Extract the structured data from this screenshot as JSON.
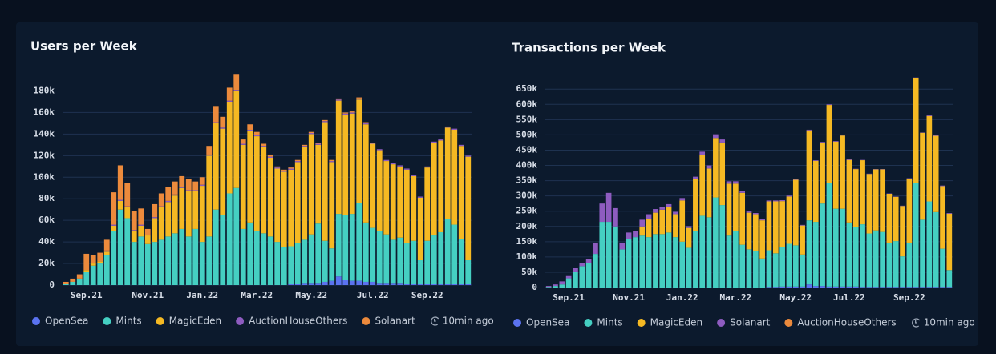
{
  "chart_data": [
    {
      "type": "stacked_bar",
      "title": "Users per Week",
      "note": "10min ago",
      "categories": [
        null,
        null,
        null,
        "Sep.21",
        null,
        null,
        null,
        null,
        null,
        null,
        null,
        null,
        "Nov.21",
        null,
        null,
        null,
        null,
        null,
        null,
        null,
        "Jan.22",
        null,
        null,
        null,
        null,
        null,
        null,
        null,
        "Mar.22",
        null,
        null,
        null,
        null,
        null,
        null,
        null,
        "May.22",
        null,
        null,
        null,
        null,
        null,
        null,
        null,
        null,
        "Jul.22",
        null,
        null,
        null,
        null,
        null,
        null,
        null,
        "Sep.22",
        null,
        null,
        null,
        null,
        null,
        null
      ],
      "ylim": [
        0,
        190
      ],
      "yticks": [
        0,
        {
          "value": 20,
          "label": "20k"
        },
        {
          "value": 40,
          "label": "40k"
        },
        {
          "value": 60,
          "label": "60k"
        },
        {
          "value": 80,
          "label": "80k"
        },
        {
          "value": 100,
          "label": "100k"
        },
        {
          "value": 120,
          "label": "120k"
        },
        {
          "value": 140,
          "label": "140k"
        },
        {
          "value": 160,
          "label": "160k"
        },
        {
          "value": 180,
          "label": "180k"
        }
      ],
      "grid": true,
      "series": [
        {
          "name": "OpenSea",
          "color": "#5b73f0",
          "values": [
            0,
            0,
            0,
            0,
            0,
            0,
            0,
            0,
            0,
            0,
            0,
            0,
            0,
            0,
            0,
            0,
            0,
            0,
            0,
            0,
            0,
            0,
            0,
            0,
            0,
            0,
            0,
            0,
            0,
            0,
            0,
            0,
            0,
            1,
            1,
            2,
            2,
            2,
            3,
            4,
            8,
            5,
            4,
            4,
            3,
            3,
            2,
            2,
            2,
            2,
            1,
            1,
            1,
            1,
            1,
            1,
            1,
            1,
            1,
            1
          ]
        },
        {
          "name": "Mints",
          "color": "#45cfc2",
          "values": [
            1,
            3,
            6,
            12,
            18,
            20,
            28,
            50,
            70,
            62,
            40,
            45,
            38,
            40,
            42,
            45,
            48,
            52,
            45,
            52,
            40,
            45,
            70,
            65,
            85,
            90,
            52,
            58,
            50,
            48,
            45,
            40,
            35,
            35,
            38,
            40,
            45,
            55,
            38,
            30,
            58,
            60,
            62,
            72,
            55,
            50,
            48,
            45,
            40,
            42,
            38,
            40,
            22,
            40,
            45,
            48,
            60,
            55,
            42,
            22
          ]
        },
        {
          "name": "MagicEden",
          "color": "#f5b923",
          "values": [
            0,
            0,
            0,
            2,
            2,
            2,
            3,
            5,
            8,
            10,
            10,
            10,
            8,
            22,
            30,
            32,
            35,
            38,
            42,
            35,
            52,
            75,
            80,
            80,
            85,
            90,
            78,
            85,
            88,
            80,
            73,
            68,
            70,
            71,
            75,
            86,
            93,
            73,
            110,
            80,
            105,
            93,
            93,
            96,
            91,
            78,
            75,
            68,
            70,
            66,
            68,
            60,
            58,
            68,
            86,
            85,
            85,
            88,
            86,
            96
          ]
        },
        {
          "name": "AuctionHouseOthers",
          "color": "#8e5cc0",
          "values": [
            0,
            0,
            0,
            0,
            0,
            0,
            1,
            1,
            1,
            1,
            1,
            1,
            0,
            1,
            1,
            1,
            1,
            1,
            1,
            1,
            1,
            1,
            1,
            1,
            1,
            1,
            1,
            1,
            1,
            1,
            1,
            1,
            1,
            1,
            1,
            1,
            1,
            1,
            1,
            1,
            1,
            1,
            1,
            1,
            1,
            1,
            1,
            1,
            1,
            1,
            1,
            1,
            1,
            1,
            1,
            1,
            1,
            1,
            1,
            1
          ]
        },
        {
          "name": "Solanart",
          "color": "#ec8a3c",
          "values": [
            2,
            3,
            4,
            15,
            8,
            8,
            10,
            30,
            32,
            22,
            18,
            15,
            6,
            12,
            12,
            13,
            12,
            10,
            10,
            8,
            7,
            8,
            15,
            10,
            12,
            14,
            4,
            5,
            3,
            2,
            2,
            1,
            1,
            1,
            1,
            1,
            1,
            1,
            1,
            1,
            1,
            1,
            1,
            1,
            1,
            0,
            0,
            0,
            0,
            0,
            0,
            0,
            0,
            0,
            0,
            0,
            0,
            0,
            0,
            0
          ]
        }
      ]
    },
    {
      "type": "stacked_bar",
      "title": "Transactions per Week",
      "note": "10min ago",
      "categories": [
        null,
        null,
        null,
        "Sep.21",
        null,
        null,
        null,
        null,
        null,
        null,
        null,
        null,
        "Nov.21",
        null,
        null,
        null,
        null,
        null,
        null,
        null,
        "Jan.22",
        null,
        null,
        null,
        null,
        null,
        null,
        null,
        "Mar.22",
        null,
        null,
        null,
        null,
        null,
        null,
        null,
        null,
        "May.22",
        null,
        null,
        null,
        null,
        null,
        null,
        null,
        "Jul.22",
        null,
        null,
        null,
        null,
        null,
        null,
        null,
        null,
        "Sep.22",
        null,
        null,
        null,
        null,
        null,
        null
      ],
      "ylim": [
        0,
        690
      ],
      "yticks": [
        0,
        {
          "value": 50,
          "label": "50k"
        },
        {
          "value": 100,
          "label": "100k"
        },
        {
          "value": 150,
          "label": "150k"
        },
        {
          "value": 200,
          "label": "200k"
        },
        {
          "value": 250,
          "label": "250k"
        },
        {
          "value": 300,
          "label": "300k"
        },
        {
          "value": 350,
          "label": "350k"
        },
        {
          "value": 400,
          "label": "400k"
        },
        {
          "value": 450,
          "label": "450k"
        },
        {
          "value": 500,
          "label": "500k"
        },
        {
          "value": 550,
          "label": "550k"
        },
        {
          "value": 600,
          "label": "600k"
        },
        {
          "value": 650,
          "label": "650k"
        }
      ],
      "grid": true,
      "series": [
        {
          "name": "OpenSea",
          "color": "#5b73f0",
          "values": [
            0,
            0,
            0,
            0,
            0,
            0,
            0,
            0,
            0,
            0,
            0,
            0,
            0,
            0,
            0,
            0,
            0,
            0,
            0,
            0,
            0,
            0,
            0,
            0,
            0,
            0,
            0,
            0,
            0,
            0,
            0,
            0,
            0,
            2,
            2,
            3,
            3,
            3,
            3,
            10,
            5,
            5,
            3,
            3,
            3,
            3,
            3,
            2,
            2,
            2,
            2,
            2,
            2,
            2,
            2,
            2,
            2,
            2,
            2,
            2,
            2
          ]
        },
        {
          "name": "Mints",
          "color": "#45cfc2",
          "values": [
            2,
            5,
            10,
            30,
            50,
            70,
            80,
            110,
            215,
            215,
            200,
            125,
            160,
            165,
            170,
            165,
            175,
            175,
            180,
            165,
            150,
            130,
            185,
            235,
            230,
            295,
            270,
            170,
            185,
            140,
            125,
            120,
            95,
            120,
            110,
            130,
            140,
            135,
            105,
            210,
            210,
            270,
            340,
            255,
            255,
            210,
            195,
            205,
            175,
            185,
            180,
            145,
            150,
            100,
            145,
            340,
            220,
            280,
            245,
            125,
            55
          ]
        },
        {
          "name": "MagicEden",
          "color": "#f5b923",
          "values": [
            0,
            0,
            0,
            0,
            0,
            0,
            0,
            0,
            0,
            0,
            0,
            0,
            0,
            0,
            30,
            60,
            70,
            80,
            85,
            75,
            135,
            65,
            170,
            200,
            160,
            195,
            205,
            170,
            155,
            170,
            120,
            120,
            125,
            160,
            170,
            150,
            155,
            215,
            95,
            295,
            200,
            200,
            255,
            220,
            240,
            205,
            190,
            210,
            195,
            200,
            205,
            160,
            145,
            165,
            210,
            345,
            285,
            280,
            250,
            205,
            185
          ]
        },
        {
          "name": "Solanart",
          "color": "#8e5cc0",
          "values": [
            3,
            5,
            10,
            10,
            15,
            10,
            12,
            35,
            60,
            95,
            60,
            20,
            20,
            20,
            22,
            15,
            12,
            10,
            8,
            8,
            8,
            6,
            8,
            10,
            10,
            12,
            10,
            8,
            8,
            6,
            4,
            4,
            3,
            3,
            3,
            3,
            3,
            2,
            2,
            2,
            2,
            2,
            2,
            2,
            2,
            2,
            1,
            1,
            1,
            1,
            1,
            1,
            1,
            1,
            1,
            1,
            1,
            2,
            2,
            2,
            2
          ]
        },
        {
          "name": "AuctionHouseOthers",
          "color": "#ec8a3c",
          "values": [
            0,
            0,
            0,
            0,
            0,
            0,
            0,
            0,
            0,
            0,
            0,
            0,
            0,
            0,
            0,
            0,
            0,
            0,
            0,
            0,
            0,
            0,
            0,
            0,
            0,
            0,
            0,
            0,
            0,
            0,
            0,
            0,
            0,
            0,
            0,
            0,
            0,
            0,
            0,
            0,
            0,
            0,
            0,
            0,
            0,
            0,
            0,
            0,
            0,
            0,
            0,
            0,
            0,
            0,
            0,
            0,
            0,
            0,
            0,
            0,
            0
          ]
        }
      ]
    }
  ]
}
